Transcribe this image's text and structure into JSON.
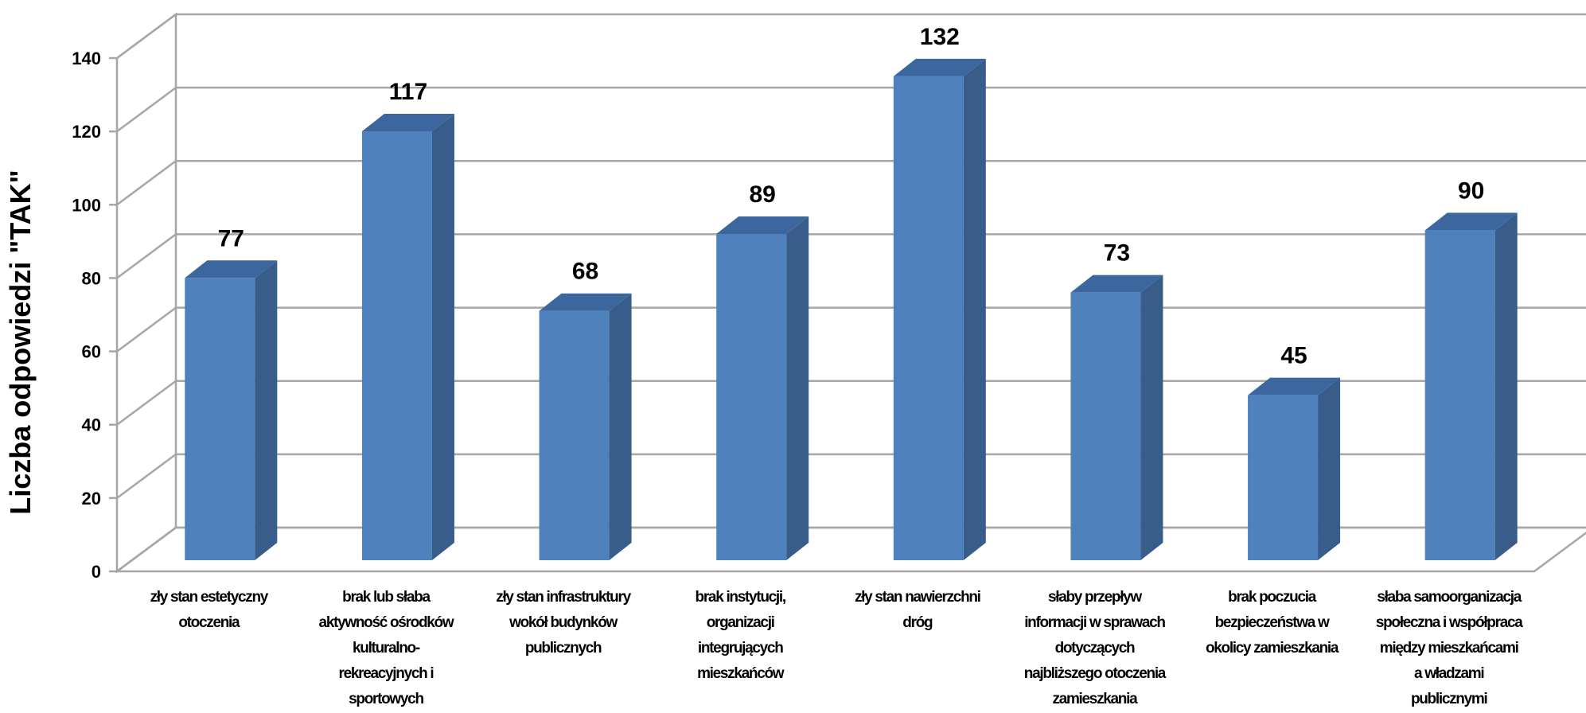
{
  "chart_data": {
    "type": "bar",
    "ylabel": "Liczba odpowiedzi \"TAK\"",
    "ylim": [
      0,
      140
    ],
    "yticks": [
      0,
      20,
      40,
      60,
      80,
      100,
      120,
      140
    ],
    "grid": true,
    "style": "3d",
    "bar_color": "#4F81BD",
    "bar_side_color": "#385D8A",
    "bar_top_color": "#3C679E",
    "gridline_color": "#A6A6A6",
    "categories": [
      "zły stan estetyczny otoczenia",
      "brak lub słaba aktywność ośrodków kulturalno-rekreacyjnych i sportowych",
      "zły stan infrastruktury wokół budynków publicznych",
      "brak instytucji, organizacji integrujących mieszkańców",
      "zły stan nawierzchni dróg",
      "słaby przepływ informacji w sprawach dotyczących najbliższego otoczenia zamieszkania",
      "brak poczucia bezpieczeństwa w okolicy zamieszkania",
      "słaba samoorganizacja społeczna i współpraca między mieszkańcami a władzami publicznymi"
    ],
    "category_label_lines": [
      [
        "zły stan estetyczny",
        "otoczenia"
      ],
      [
        "brak lub słaba",
        "aktywność ośrodków",
        "kulturalno-",
        "rekreacyjnych i",
        "sportowych"
      ],
      [
        "zły stan infrastruktury",
        "wokół budynków",
        "publicznych"
      ],
      [
        "brak instytucji,",
        "organizacji",
        "integrujących",
        "mieszkańców"
      ],
      [
        "zły stan nawierzchni",
        "dróg"
      ],
      [
        "słaby przepływ",
        "informacji w sprawach",
        "dotyczących",
        "najbliższego otoczenia",
        "zamieszkania"
      ],
      [
        "brak poczucia",
        "bezpieczeństwa w",
        "okolicy zamieszkania"
      ],
      [
        "słaba samoorganizacja",
        "społeczna i współpraca",
        "między mieszkańcami",
        "a władzami",
        "publicznymi"
      ]
    ],
    "values": [
      77,
      117,
      68,
      89,
      132,
      73,
      45,
      90
    ]
  }
}
